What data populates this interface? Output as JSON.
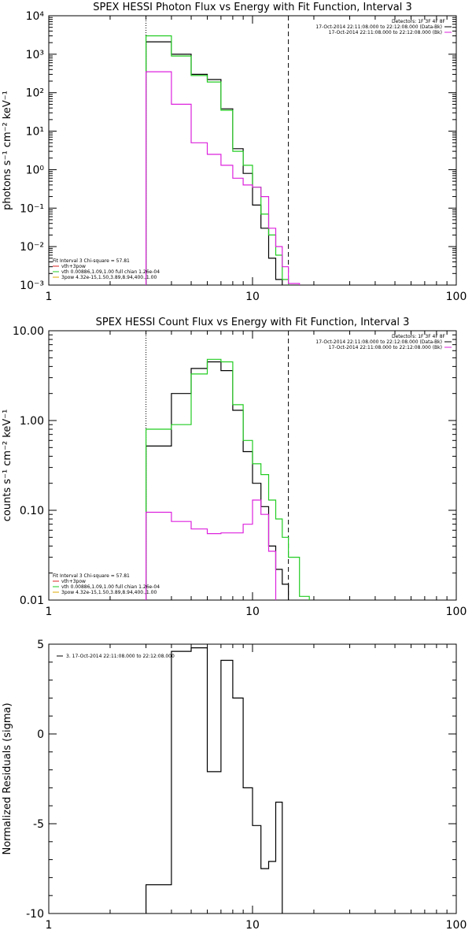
{
  "chart_data": [
    {
      "type": "line",
      "title": "SPEX HESSI Photon Flux vs Energy with Fit Function, Interval 3",
      "ylabel": "photons s⁻¹ cm⁻² keV⁻¹",
      "xlabel": "",
      "xscale": "log",
      "yscale": "log",
      "xlim": [
        1,
        100
      ],
      "ylim": [
        0.001,
        10000
      ],
      "x_ticks": [
        "1",
        "10",
        "100"
      ],
      "y_ticks": [
        "10⁻³",
        "10⁻²",
        "10⁻¹",
        "10⁰",
        "10¹",
        "10²",
        "10³",
        "10⁴"
      ],
      "y_tick_values": [
        0.001,
        0.01,
        0.1,
        1,
        10,
        100,
        1000,
        10000
      ],
      "legend_header": [
        "Detectors: 1F 3F 4F 8F",
        "17-Oct-2014 22:11:08.000 to 22:12:08.000 (Data-Bk)",
        "17-Oct-2014 22:11:08.000 to 22:12:08.000 (Bk)"
      ],
      "fit_info": [
        "Fit Interval 3   Chi-square = 57.81",
        "vth+3pow",
        "vth 0.00886,1.09,1.00  full chian 1.26e-04",
        "3pow 4.32e-15,1.50,3.89,8.94,400.,1.00"
      ],
      "vlines": [
        {
          "x": 3.0,
          "style": "dotted"
        },
        {
          "x": 15.0,
          "style": "dashed"
        }
      ],
      "bin_edges": [
        3,
        4,
        5,
        6,
        7,
        8,
        9,
        10,
        11,
        12,
        13,
        14,
        15,
        17,
        19,
        21
      ],
      "series": [
        {
          "name": "17-Oct-2014 22:11:08.000 to 22:12:08.000 (Data-Bk)",
          "color": "#000000",
          "values": [
            2100,
            1000,
            300,
            220,
            38,
            3.5,
            0.8,
            0.12,
            0.03,
            0.005,
            0.0014,
            null,
            null,
            null,
            null
          ]
        },
        {
          "name": "vth+3pow",
          "color": "#22cc22",
          "values": [
            3000,
            900,
            280,
            190,
            35,
            3.0,
            1.3,
            0.35,
            0.07,
            0.02,
            0.006,
            0.0014,
            null,
            null,
            null
          ]
        },
        {
          "name": "17-Oct-2014 22:11:08.000 to 22:12:08.000 (Bk)",
          "color": "#dd22dd",
          "values": [
            350,
            50,
            5,
            2.5,
            1.3,
            0.6,
            0.4,
            0.35,
            0.2,
            0.03,
            0.01,
            0.003,
            0.0011,
            null,
            null
          ]
        }
      ]
    },
    {
      "type": "line",
      "title": "SPEX HESSI Count Flux vs Energy with Fit Function, Interval 3",
      "ylabel": "counts s⁻¹ cm⁻² keV⁻¹",
      "xlabel": "",
      "xscale": "log",
      "yscale": "log",
      "xlim": [
        1,
        100
      ],
      "ylim": [
        0.01,
        10
      ],
      "x_ticks": [
        "1",
        "10",
        "100"
      ],
      "y_ticks": [
        "0.01",
        "0.10",
        "1.00",
        "10.00"
      ],
      "y_tick_values": [
        0.01,
        0.1,
        1,
        10
      ],
      "legend_header": [
        "Detectors: 1F 3F 4F 8F",
        "17-Oct-2014 22:11:08.000 to 22:12:08.000 (Data-Bk)",
        "17-Oct-2014 22:11:08.000 to 22:12:08.000 (Bk)"
      ],
      "fit_info": [
        "Fit Interval 3   Chi-square = 57.81",
        "vth+3pow",
        "vth 0.00886,1.09,1.00  full chian 1.26e-04",
        "3pow 4.32e-15,1.50,3.89,8.94,400.,1.00"
      ],
      "vlines": [
        {
          "x": 3.0,
          "style": "dotted"
        },
        {
          "x": 15.0,
          "style": "dashed"
        }
      ],
      "bin_edges": [
        3,
        4,
        5,
        6,
        7,
        8,
        9,
        10,
        11,
        12,
        13,
        14,
        15,
        17,
        19,
        21
      ],
      "series": [
        {
          "name": "17-Oct-2014 22:11:08.000 to 22:12:08.000 (Data-Bk)",
          "color": "#000000",
          "values": [
            0.52,
            2.0,
            3.8,
            4.5,
            3.6,
            1.3,
            0.45,
            0.2,
            0.11,
            0.04,
            0.022,
            0.015,
            null,
            null,
            null
          ]
        },
        {
          "name": "vth+3pow",
          "color": "#22cc22",
          "values": [
            0.8,
            0.9,
            3.3,
            4.8,
            4.5,
            1.5,
            0.6,
            0.33,
            0.25,
            0.13,
            0.08,
            0.05,
            0.03,
            0.011,
            null
          ]
        },
        {
          "name": "17-Oct-2014 22:11:08.000 to 22:12:08.000 (Bk)",
          "color": "#dd22dd",
          "values": [
            0.095,
            0.075,
            0.062,
            0.055,
            0.056,
            0.056,
            0.07,
            0.13,
            0.09,
            0.035,
            null,
            null,
            null,
            null,
            null
          ]
        }
      ]
    },
    {
      "type": "line",
      "title": "",
      "ylabel": "Normalized Residuals (sigma)",
      "xlabel": "",
      "xscale": "log",
      "yscale": "linear",
      "xlim": [
        1,
        100
      ],
      "ylim": [
        -10,
        5
      ],
      "x_ticks": [
        "1",
        "10",
        "100"
      ],
      "y_ticks": [
        "-10",
        "-5",
        "0",
        "5"
      ],
      "y_tick_values": [
        -10,
        -5,
        0,
        5
      ],
      "legend": [
        "3. 17-Oct-2014 22:11:08.000 to 22:12:08.000"
      ],
      "bin_edges": [
        3,
        4,
        5,
        6,
        7,
        8,
        9,
        10,
        11,
        12,
        13,
        14,
        15
      ],
      "series": [
        {
          "name": "3. 17-Oct-2014 22:11:08.000 to 22:12:08.000",
          "color": "#000000",
          "values": [
            -8.4,
            4.6,
            4.8,
            -2.1,
            4.1,
            2.0,
            -3.0,
            -5.1,
            -7.5,
            -7.1,
            -3.8,
            null
          ]
        }
      ]
    }
  ]
}
